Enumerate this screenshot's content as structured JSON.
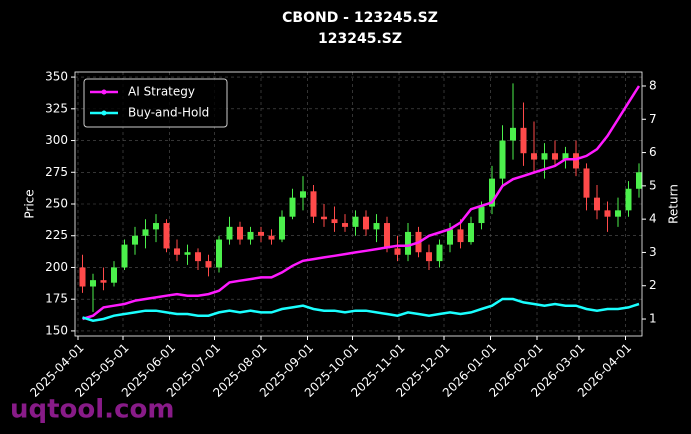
{
  "chart_data": {
    "type": "candlestick",
    "title": "CBOND - 123245.SZ",
    "subtitle": "123245.SZ",
    "y_label": "Price",
    "y2_label": "Return",
    "watermark": "uqtool.com",
    "x": [
      "2025-04-04",
      "2025-04-11",
      "2025-04-18",
      "2025-04-25",
      "2025-05-02",
      "2025-05-09",
      "2025-05-16",
      "2025-05-23",
      "2025-05-30",
      "2025-06-06",
      "2025-06-13",
      "2025-06-20",
      "2025-06-27",
      "2025-07-04",
      "2025-07-11",
      "2025-07-18",
      "2025-07-25",
      "2025-08-01",
      "2025-08-08",
      "2025-08-15",
      "2025-08-22",
      "2025-08-29",
      "2025-09-05",
      "2025-09-12",
      "2025-09-19",
      "2025-09-26",
      "2025-10-03",
      "2025-10-10",
      "2025-10-17",
      "2025-10-24",
      "2025-10-31",
      "2025-11-07",
      "2025-11-14",
      "2025-11-21",
      "2025-11-28",
      "2025-12-05",
      "2025-12-12",
      "2025-12-19",
      "2025-12-26",
      "2026-01-02",
      "2026-01-09",
      "2026-01-16",
      "2026-01-23",
      "2026-01-30",
      "2026-02-06",
      "2026-02-13",
      "2026-02-20",
      "2026-02-27",
      "2026-03-06",
      "2026-03-13",
      "2026-03-20",
      "2026-03-27",
      "2026-04-03",
      "2026-04-10"
    ],
    "open": [
      200,
      185,
      190,
      188,
      200,
      218,
      225,
      230,
      235,
      215,
      210,
      212,
      205,
      200,
      222,
      232,
      222,
      228,
      225,
      222,
      240,
      255,
      260,
      240,
      238,
      235,
      232,
      240,
      230,
      235,
      215,
      210,
      228,
      212,
      205,
      218,
      230,
      220,
      235,
      248,
      270,
      300,
      310,
      290,
      285,
      290,
      285,
      290,
      278,
      255,
      245,
      240,
      245,
      262
    ],
    "high": [
      210,
      195,
      200,
      205,
      222,
      232,
      238,
      242,
      238,
      222,
      218,
      215,
      210,
      225,
      240,
      236,
      232,
      232,
      230,
      245,
      262,
      272,
      265,
      250,
      248,
      242,
      245,
      245,
      242,
      240,
      225,
      235,
      232,
      218,
      222,
      235,
      238,
      240,
      252,
      280,
      312,
      345,
      330,
      315,
      298,
      300,
      295,
      300,
      282,
      265,
      252,
      255,
      268,
      282
    ],
    "low": [
      180,
      165,
      182,
      185,
      198,
      210,
      215,
      220,
      212,
      205,
      202,
      198,
      193,
      196,
      218,
      218,
      218,
      220,
      218,
      220,
      238,
      245,
      235,
      232,
      228,
      228,
      225,
      225,
      220,
      212,
      205,
      205,
      208,
      198,
      200,
      212,
      215,
      218,
      230,
      242,
      265,
      285,
      280,
      275,
      270,
      280,
      278,
      272,
      245,
      238,
      228,
      232,
      240,
      255
    ],
    "close": [
      185,
      190,
      188,
      200,
      218,
      225,
      230,
      235,
      215,
      210,
      212,
      205,
      200,
      222,
      232,
      222,
      228,
      225,
      222,
      240,
      255,
      260,
      240,
      238,
      235,
      232,
      240,
      230,
      235,
      215,
      210,
      228,
      212,
      205,
      218,
      230,
      220,
      235,
      248,
      270,
      300,
      310,
      290,
      285,
      290,
      285,
      290,
      278,
      255,
      245,
      240,
      245,
      262,
      275
    ],
    "up_color": "#4cf04c",
    "down_color": "#ff4a4a",
    "series": [
      {
        "name": "AI Strategy",
        "color": "#ff1aff",
        "axis": "y2",
        "values": [
          1.0,
          1.1,
          1.35,
          1.4,
          1.45,
          1.55,
          1.6,
          1.65,
          1.7,
          1.75,
          1.7,
          1.7,
          1.75,
          1.85,
          2.1,
          2.15,
          2.2,
          2.25,
          2.25,
          2.4,
          2.6,
          2.75,
          2.8,
          2.85,
          2.9,
          2.95,
          3.0,
          3.05,
          3.1,
          3.15,
          3.2,
          3.2,
          3.3,
          3.5,
          3.6,
          3.7,
          3.9,
          4.3,
          4.4,
          4.5,
          5.0,
          5.2,
          5.3,
          5.4,
          5.5,
          5.6,
          5.8,
          5.8,
          5.9,
          6.1,
          6.5,
          7.0,
          7.5,
          8.0
        ]
      },
      {
        "name": "Buy-and-Hold",
        "color": "#1affff",
        "axis": "y2",
        "values": [
          1.05,
          0.95,
          1.0,
          1.1,
          1.15,
          1.2,
          1.25,
          1.25,
          1.2,
          1.15,
          1.15,
          1.1,
          1.1,
          1.2,
          1.25,
          1.2,
          1.25,
          1.2,
          1.2,
          1.3,
          1.35,
          1.4,
          1.3,
          1.25,
          1.25,
          1.2,
          1.25,
          1.25,
          1.2,
          1.15,
          1.1,
          1.2,
          1.15,
          1.1,
          1.15,
          1.2,
          1.15,
          1.2,
          1.3,
          1.4,
          1.6,
          1.6,
          1.5,
          1.45,
          1.4,
          1.45,
          1.4,
          1.4,
          1.3,
          1.25,
          1.3,
          1.3,
          1.35,
          1.45
        ]
      }
    ],
    "xlim": [
      "2025-03-30",
      "2026-04-12"
    ],
    "xticks": [
      "2025-04-01",
      "2025-05-01",
      "2025-06-01",
      "2025-07-01",
      "2025-08-01",
      "2025-09-01",
      "2025-10-01",
      "2025-11-01",
      "2025-12-01",
      "2026-01-01",
      "2026-02-01",
      "2026-03-01",
      "2026-04-01"
    ],
    "ylim": [
      146,
      354
    ],
    "yticks": [
      150,
      175,
      200,
      225,
      250,
      275,
      300,
      325,
      350
    ],
    "y2lim": [
      0.49,
      8.42
    ],
    "y2ticks": [
      1,
      2,
      3,
      4,
      5,
      6,
      7,
      8
    ],
    "grid": true,
    "legend": "upper left"
  }
}
